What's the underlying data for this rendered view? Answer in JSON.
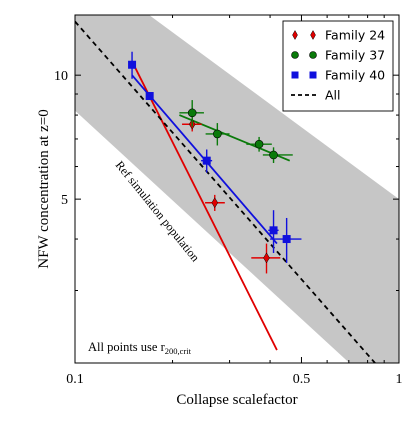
{
  "chart_data": {
    "type": "scatter",
    "xlabel": "Collapse scalefactor",
    "ylabel": "NFW concentration at z=0",
    "x_scale": "log",
    "y_scale": "log",
    "xlim": [
      0.1,
      1.0
    ],
    "ylim": [
      2.0,
      14.0
    ],
    "x_ticks": [
      {
        "value": 0.1,
        "label": "0.1"
      },
      {
        "value": 0.5,
        "label": "0.5"
      },
      {
        "value": 1.0,
        "label": "1"
      }
    ],
    "y_ticks": [
      {
        "value": 5,
        "label": "5"
      },
      {
        "value": 10,
        "label": "10"
      }
    ],
    "band_label": "Ref simulation population",
    "band": {
      "upper": [
        [
          0.1,
          19.0
        ],
        [
          1.0,
          5.0
        ]
      ],
      "lower": [
        [
          0.1,
          8.2
        ],
        [
          1.0,
          1.55
        ]
      ]
    },
    "annotation": {
      "text_main": "All points use r",
      "text_sub": "200,crit"
    },
    "legend": {
      "position": "top-right",
      "entries": [
        {
          "label": "Family 24",
          "marker": "diamond",
          "color": "#e00000"
        },
        {
          "label": "Family 37",
          "marker": "circle",
          "color": "#0a7a0a"
        },
        {
          "label": "Family 40",
          "marker": "square",
          "color": "#1010dd"
        },
        {
          "label": "All",
          "marker": "dashed-line",
          "color": "#000000"
        }
      ]
    },
    "all_fit": {
      "x": [
        0.1,
        0.92
      ],
      "y": [
        13.5,
        1.85
      ]
    },
    "series": [
      {
        "name": "Family 24",
        "marker": "diamond",
        "color": "#e00000",
        "fit": {
          "x": [
            0.15,
            0.42
          ],
          "y": [
            10.8,
            2.15
          ]
        },
        "points": [
          {
            "x": 0.23,
            "y": 7.6,
            "xerr": [
              0.016,
              0.016
            ],
            "yerr": [
              0.3,
              0.3
            ]
          },
          {
            "x": 0.27,
            "y": 4.9,
            "xerr": [
              0.018,
              0.02
            ],
            "yerr": [
              0.22,
              0.22
            ]
          },
          {
            "x": 0.39,
            "y": 3.6,
            "xerr": [
              0.04,
              0.04
            ],
            "yerr": [
              0.3,
              0.3
            ]
          }
        ]
      },
      {
        "name": "Family 37",
        "marker": "circle",
        "color": "#0a7a0a",
        "fit": {
          "x": [
            0.21,
            0.46
          ],
          "y": [
            8.0,
            6.2
          ]
        },
        "points": [
          {
            "x": 0.23,
            "y": 8.1,
            "xerr": [
              0.02,
              0.02
            ],
            "yerr": [
              0.6,
              0.6
            ]
          },
          {
            "x": 0.275,
            "y": 7.2,
            "xerr": [
              0.022,
              0.025
            ],
            "yerr": [
              0.45,
              0.45
            ]
          },
          {
            "x": 0.37,
            "y": 6.8,
            "xerr": [
              0.032,
              0.035
            ],
            "yerr": [
              0.28,
              0.28
            ]
          },
          {
            "x": 0.41,
            "y": 6.4,
            "xerr": [
              0.03,
              0.06
            ],
            "yerr": [
              0.28,
              0.28
            ]
          }
        ]
      },
      {
        "name": "Family 40",
        "marker": "square",
        "color": "#1010dd",
        "fit": {
          "x": [
            0.15,
            0.42
          ],
          "y": [
            10.0,
            3.9
          ]
        },
        "points": [
          {
            "x": 0.15,
            "y": 10.6,
            "xerr": [
              0.0,
              0.0
            ],
            "yerr": [
              0.8,
              0.8
            ]
          },
          {
            "x": 0.17,
            "y": 8.9,
            "xerr": [
              0.0,
              0.0
            ],
            "yerr": [
              0.0,
              0.0
            ]
          },
          {
            "x": 0.255,
            "y": 6.2,
            "xerr": [
              0.01,
              0.01
            ],
            "yerr": [
              0.4,
              0.4
            ]
          },
          {
            "x": 0.41,
            "y": 4.2,
            "xerr": [
              0.015,
              0.015
            ],
            "yerr": [
              0.5,
              0.5
            ]
          },
          {
            "x": 0.45,
            "y": 4.0,
            "xerr": [
              0.05,
              0.05
            ],
            "yerr": [
              0.5,
              0.5
            ]
          }
        ]
      }
    ]
  }
}
